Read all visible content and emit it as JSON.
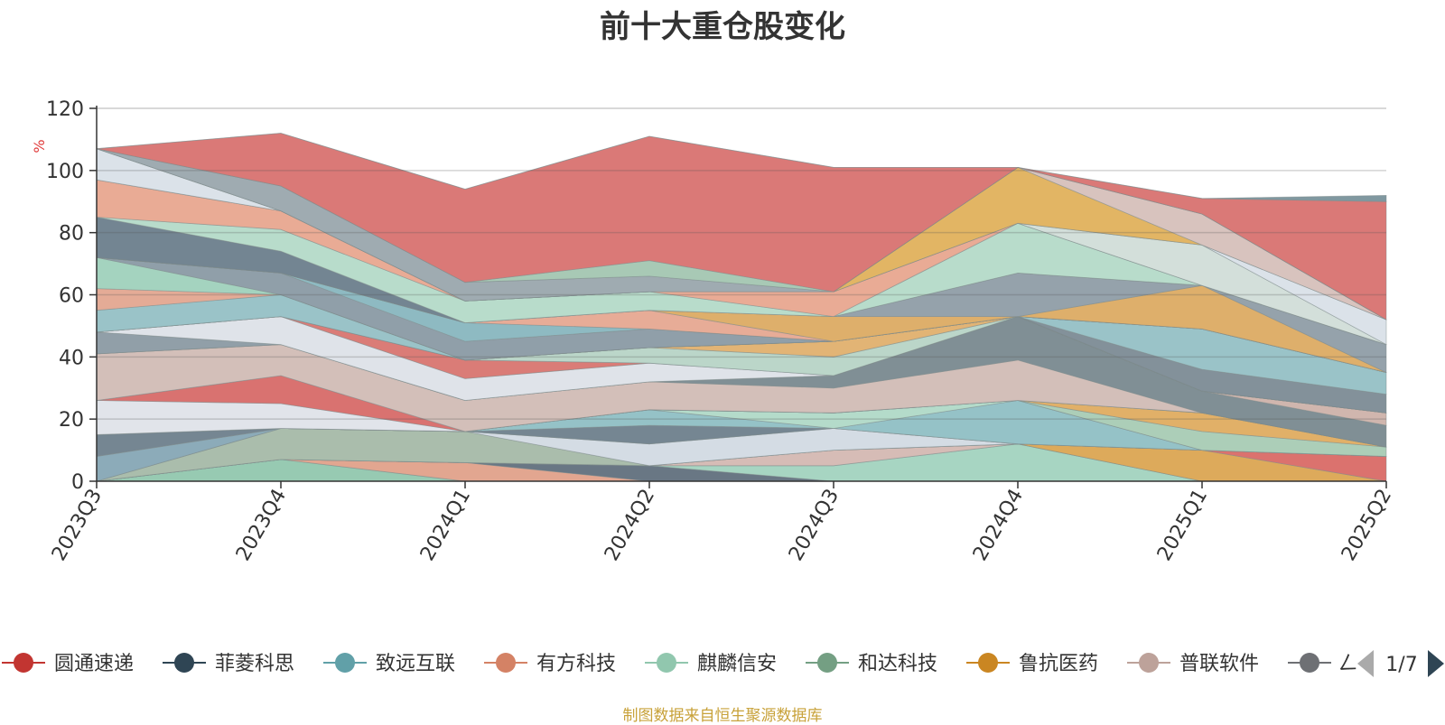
{
  "chart_data": {
    "type": "area",
    "stacked": true,
    "title": "前十大重仓股变化",
    "ylabel": "%",
    "ylim": [
      0,
      120
    ],
    "yticks": [
      0,
      20,
      40,
      60,
      80,
      100,
      120
    ],
    "grid": true,
    "legend_position": "bottom",
    "legend_page": "1/7",
    "categories": [
      "2023Q3",
      "2023Q4",
      "2024Q1",
      "2024Q2",
      "2024Q3",
      "2024Q4",
      "2025Q1",
      "2025Q2"
    ],
    "series": [
      {
        "name": "",
        "color": "#91c7ae",
        "values": [
          0,
          7,
          0,
          0,
          0,
          0,
          0,
          0
        ]
      },
      {
        "name": "",
        "color": "#e0a18a",
        "values": [
          0,
          0,
          6,
          0,
          0,
          0,
          0,
          0
        ]
      },
      {
        "name": "",
        "color": "#61707d",
        "values": [
          0,
          0,
          0,
          5,
          0,
          0,
          0,
          0
        ]
      },
      {
        "name": "",
        "color": "#a2d3bf",
        "values": [
          0,
          0,
          0,
          0,
          5,
          12,
          0,
          0
        ]
      },
      {
        "name": "",
        "color": "#d4b8b2",
        "values": [
          0,
          0,
          0,
          0,
          5,
          0,
          0,
          0
        ]
      },
      {
        "name": "",
        "color": "#dba552",
        "values": [
          0,
          0,
          0,
          0,
          0,
          0,
          10,
          0
        ]
      },
      {
        "name": "圆通速递",
        "color": "#d96a66",
        "values": [
          0,
          0,
          0,
          0,
          0,
          0,
          0,
          8
        ]
      },
      {
        "name": "",
        "color": "#a5b9a8",
        "values": [
          0,
          10,
          10,
          0,
          0,
          0,
          0,
          0
        ]
      },
      {
        "name": "",
        "color": "#d2dae3",
        "values": [
          0,
          0,
          0,
          7,
          7,
          0,
          0,
          0
        ]
      },
      {
        "name": "",
        "color": "#86a7b5",
        "values": [
          8,
          0,
          0,
          0,
          0,
          0,
          0,
          0
        ]
      },
      {
        "name": "",
        "color": "#6e7f8c",
        "values": [
          7,
          0,
          0,
          6,
          0,
          0,
          0,
          0
        ]
      },
      {
        "name": "",
        "color": "#8fbfc4",
        "values": [
          0,
          0,
          0,
          5,
          0,
          14,
          0,
          0
        ]
      },
      {
        "name": "",
        "color": "#b0d9c7",
        "values": [
          0,
          0,
          0,
          0,
          5,
          0,
          0,
          0
        ]
      },
      {
        "name": "",
        "color": "#a8cbb4",
        "values": [
          0,
          0,
          0,
          0,
          0,
          0,
          6,
          3
        ]
      },
      {
        "name": "",
        "color": "#dfac60",
        "values": [
          0,
          0,
          0,
          0,
          0,
          0,
          6,
          0
        ]
      },
      {
        "name": "",
        "color": "#dfe3e9",
        "values": [
          11,
          8,
          0,
          0,
          0,
          0,
          0,
          0
        ]
      },
      {
        "name": "",
        "color": "#d76a68",
        "values": [
          0,
          9,
          0,
          0,
          0,
          0,
          0,
          0
        ]
      },
      {
        "name": "",
        "color": "#d1bcb5",
        "values": [
          15,
          10,
          10,
          9,
          8,
          13,
          0,
          0
        ]
      },
      {
        "name": "",
        "color": "#79898f",
        "values": [
          0,
          0,
          0,
          0,
          4,
          14,
          7,
          7
        ]
      },
      {
        "name": "",
        "color": "#cdb2aa",
        "values": [
          0,
          0,
          0,
          0,
          0,
          0,
          0,
          4
        ]
      },
      {
        "name": "",
        "color": "#8b9aa3",
        "values": [
          7,
          0,
          0,
          0,
          0,
          0,
          0,
          0
        ]
      },
      {
        "name": "",
        "color": "#dde2e8",
        "values": [
          0,
          9,
          7,
          6,
          0,
          0,
          0,
          0
        ]
      },
      {
        "name": "",
        "color": "#d87570",
        "values": [
          0,
          0,
          6,
          0,
          0,
          0,
          0,
          0
        ]
      },
      {
        "name": "",
        "color": "#b7d4c6",
        "values": [
          0,
          0,
          0,
          5,
          6,
          0,
          0,
          0
        ]
      },
      {
        "name": "",
        "color": "#e0b06e",
        "values": [
          0,
          0,
          0,
          0,
          5,
          0,
          0,
          0
        ]
      },
      {
        "name": "",
        "color": "#7c8b95",
        "values": [
          0,
          0,
          0,
          0,
          0,
          0,
          7,
          6
        ]
      },
      {
        "name": "",
        "color": "#95c0c5",
        "values": [
          7,
          7,
          0,
          0,
          0,
          0,
          13,
          7
        ]
      },
      {
        "name": "",
        "color": "#e3a690",
        "values": [
          7,
          0,
          0,
          0,
          0,
          0,
          0,
          0
        ]
      },
      {
        "name": "",
        "color": "#9fd1bc",
        "values": [
          10,
          0,
          0,
          0,
          0,
          0,
          0,
          0
        ]
      },
      {
        "name": "",
        "color": "#8a9aa4",
        "values": [
          0,
          7,
          6,
          6,
          0,
          0,
          0,
          0
        ]
      },
      {
        "name": "",
        "color": "#88b6bf",
        "values": [
          0,
          0,
          6,
          0,
          0,
          0,
          0,
          0
        ]
      },
      {
        "name": "",
        "color": "#e6a891",
        "values": [
          0,
          0,
          0,
          6,
          0,
          0,
          0,
          0
        ]
      },
      {
        "name": "",
        "color": "#dcab63",
        "values": [
          0,
          0,
          0,
          0,
          8,
          0,
          14,
          0
        ]
      },
      {
        "name": "",
        "color": "#8f9da6",
        "values": [
          0,
          0,
          0,
          0,
          0,
          14,
          0,
          9
        ]
      },
      {
        "name": "",
        "color": "#6c7e8c",
        "values": [
          13,
          7,
          0,
          0,
          0,
          0,
          0,
          0
        ]
      },
      {
        "name": "",
        "color": "#b4dac8",
        "values": [
          0,
          7,
          7,
          6,
          0,
          16,
          0,
          0
        ]
      },
      {
        "name": "",
        "color": "#e8a78f",
        "values": [
          12,
          6,
          0,
          0,
          8,
          0,
          0,
          0
        ]
      },
      {
        "name": "",
        "color": "#d1ddd8",
        "values": [
          0,
          0,
          0,
          0,
          0,
          0,
          13,
          0
        ]
      },
      {
        "name": "",
        "color": "#d9e0e8",
        "values": [
          10,
          0,
          0,
          0,
          0,
          0,
          0,
          8
        ]
      },
      {
        "name": "",
        "color": "#e0b15c",
        "values": [
          0,
          0,
          0,
          0,
          0,
          18,
          0,
          0
        ]
      },
      {
        "name": "",
        "color": "#d6c0ba",
        "values": [
          0,
          0,
          0,
          0,
          0,
          0,
          10,
          0
        ]
      },
      {
        "name": "",
        "color": "#9aa6ad",
        "values": [
          0,
          8,
          6,
          5,
          0,
          0,
          0,
          0
        ]
      },
      {
        "name": "",
        "color": "#a3c6b1",
        "values": [
          0,
          0,
          0,
          5,
          0,
          0,
          0,
          0
        ]
      },
      {
        "name": "",
        "color": "#d87270",
        "values": [
          0,
          17,
          30,
          40,
          40,
          0,
          5,
          38
        ]
      },
      {
        "name": "",
        "color": "#79929b",
        "values": [
          0,
          0,
          0,
          0,
          0,
          0,
          0,
          2
        ]
      }
    ]
  },
  "legend": {
    "items": [
      {
        "label": "圆通速递",
        "color": "#c23531"
      },
      {
        "label": "菲菱科思",
        "color": "#2f4554"
      },
      {
        "label": "致远互联",
        "color": "#61a0a8"
      },
      {
        "label": "有方科技",
        "color": "#d48265"
      },
      {
        "label": "麒麟信安",
        "color": "#91c7ae"
      },
      {
        "label": "和达科技",
        "color": "#749f83"
      },
      {
        "label": "鲁抗医药",
        "color": "#ca8622"
      },
      {
        "label": "普联软件",
        "color": "#bda29a"
      },
      {
        "label": "",
        "color": "#6e7074"
      }
    ],
    "truncated_label_glyph": "𠃋",
    "page_indicator": "1/7",
    "arrow_color_disabled": "#aaaaaa",
    "arrow_color_active": "#2f4554"
  },
  "source_note": "制图数据来自恒生聚源数据库"
}
